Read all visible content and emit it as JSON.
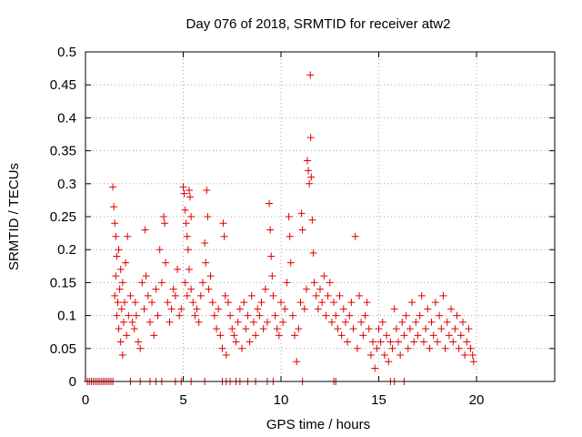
{
  "chart_data": {
    "type": "scatter",
    "title": "Day 076 of 2018, SRMTID for receiver atw2",
    "xlabel": "GPS time / hours",
    "ylabel": "SRMTID / TECUs",
    "xlim": [
      0,
      24
    ],
    "ylim": [
      0,
      0.5
    ],
    "xticks": [
      0,
      5,
      10,
      15,
      20
    ],
    "yticks": [
      0,
      0.05,
      0.1,
      0.15,
      0.2,
      0.25,
      0.3,
      0.35,
      0.4,
      0.45,
      0.5
    ],
    "xtick_labels": [
      "0",
      "5",
      "10",
      "15",
      "20"
    ],
    "ytick_labels": [
      "0",
      "0.05",
      "0.1",
      "0.15",
      "0.2",
      "0.25",
      "0.3",
      "0.35",
      "0.4",
      "0.45",
      "0.5"
    ],
    "grid": true,
    "marker": "+",
    "color": "#e00000",
    "series": [
      {
        "name": "SRMTID",
        "points": [
          [
            0.1,
            0
          ],
          [
            0.2,
            0
          ],
          [
            0.3,
            0
          ],
          [
            0.4,
            0
          ],
          [
            0.5,
            0
          ],
          [
            0.6,
            0
          ],
          [
            0.7,
            0
          ],
          [
            0.8,
            0
          ],
          [
            0.9,
            0
          ],
          [
            1.0,
            0
          ],
          [
            1.1,
            0
          ],
          [
            1.2,
            0
          ],
          [
            1.3,
            0
          ],
          [
            1.4,
            0
          ],
          [
            2.3,
            0
          ],
          [
            2.8,
            0
          ],
          [
            3.3,
            0
          ],
          [
            3.6,
            0
          ],
          [
            3.9,
            0
          ],
          [
            4.6,
            0
          ],
          [
            4.9,
            0
          ],
          [
            5.4,
            0
          ],
          [
            6.1,
            0
          ],
          [
            7.0,
            0
          ],
          [
            7.2,
            0
          ],
          [
            7.4,
            0
          ],
          [
            7.7,
            0
          ],
          [
            7.9,
            0
          ],
          [
            8.3,
            0
          ],
          [
            8.7,
            0
          ],
          [
            9.3,
            0
          ],
          [
            9.6,
            0
          ],
          [
            11.1,
            0
          ],
          [
            12.7,
            0
          ],
          [
            12.8,
            0
          ],
          [
            15.6,
            0
          ],
          [
            15.8,
            0
          ],
          [
            16.3,
            0
          ],
          [
            1.4,
            0.295
          ],
          [
            1.45,
            0.265
          ],
          [
            1.5,
            0.24
          ],
          [
            1.55,
            0.22
          ],
          [
            1.6,
            0.19
          ],
          [
            1.5,
            0.13
          ],
          [
            1.55,
            0.16
          ],
          [
            1.6,
            0.1
          ],
          [
            1.65,
            0.12
          ],
          [
            1.7,
            0.08
          ],
          [
            1.75,
            0.14
          ],
          [
            1.8,
            0.06
          ],
          [
            1.85,
            0.11
          ],
          [
            1.9,
            0.04
          ],
          [
            1.95,
            0.09
          ],
          [
            1.7,
            0.2
          ],
          [
            1.8,
            0.17
          ],
          [
            1.9,
            0.15
          ],
          [
            2.0,
            0.12
          ],
          [
            2.05,
            0.18
          ],
          [
            2.1,
            0.07
          ],
          [
            2.15,
            0.22
          ],
          [
            2.2,
            0.1
          ],
          [
            2.3,
            0.13
          ],
          [
            2.4,
            0.09
          ],
          [
            2.5,
            0.08
          ],
          [
            2.55,
            0.12
          ],
          [
            2.6,
            0.1
          ],
          [
            2.7,
            0.06
          ],
          [
            2.8,
            0.05
          ],
          [
            2.9,
            0.15
          ],
          [
            3.0,
            0.11
          ],
          [
            3.05,
            0.23
          ],
          [
            3.1,
            0.16
          ],
          [
            3.2,
            0.13
          ],
          [
            3.3,
            0.09
          ],
          [
            3.4,
            0.12
          ],
          [
            3.5,
            0.07
          ],
          [
            3.6,
            0.14
          ],
          [
            3.7,
            0.1
          ],
          [
            3.8,
            0.2
          ],
          [
            3.9,
            0.15
          ],
          [
            4.0,
            0.25
          ],
          [
            4.05,
            0.24
          ],
          [
            4.1,
            0.18
          ],
          [
            4.2,
            0.12
          ],
          [
            4.3,
            0.09
          ],
          [
            4.4,
            0.11
          ],
          [
            4.5,
            0.14
          ],
          [
            4.6,
            0.13
          ],
          [
            4.7,
            0.17
          ],
          [
            4.8,
            0.1
          ],
          [
            4.9,
            0.11
          ],
          [
            5.0,
            0.295
          ],
          [
            5.05,
            0.285
          ],
          [
            5.1,
            0.26
          ],
          [
            5.15,
            0.24
          ],
          [
            5.2,
            0.22
          ],
          [
            5.25,
            0.2
          ],
          [
            5.3,
            0.29
          ],
          [
            5.35,
            0.28
          ],
          [
            5.4,
            0.25
          ],
          [
            5.1,
            0.15
          ],
          [
            5.2,
            0.13
          ],
          [
            5.3,
            0.17
          ],
          [
            5.4,
            0.14
          ],
          [
            5.5,
            0.12
          ],
          [
            5.6,
            0.1
          ],
          [
            5.7,
            0.11
          ],
          [
            5.8,
            0.09
          ],
          [
            5.9,
            0.13
          ],
          [
            6.0,
            0.15
          ],
          [
            6.1,
            0.21
          ],
          [
            6.15,
            0.18
          ],
          [
            6.2,
            0.29
          ],
          [
            6.25,
            0.25
          ],
          [
            6.3,
            0.14
          ],
          [
            6.4,
            0.16
          ],
          [
            6.5,
            0.12
          ],
          [
            6.6,
            0.1
          ],
          [
            6.7,
            0.08
          ],
          [
            6.8,
            0.11
          ],
          [
            6.9,
            0.07
          ],
          [
            7.0,
            0.05
          ],
          [
            7.05,
            0.24
          ],
          [
            7.1,
            0.22
          ],
          [
            7.15,
            0.13
          ],
          [
            7.2,
            0.04
          ],
          [
            7.3,
            0.12
          ],
          [
            7.4,
            0.1
          ],
          [
            7.5,
            0.08
          ],
          [
            7.6,
            0.07
          ],
          [
            7.7,
            0.06
          ],
          [
            7.8,
            0.09
          ],
          [
            7.9,
            0.11
          ],
          [
            8.0,
            0.05
          ],
          [
            8.1,
            0.12
          ],
          [
            8.2,
            0.08
          ],
          [
            8.3,
            0.1
          ],
          [
            8.4,
            0.06
          ],
          [
            8.5,
            0.13
          ],
          [
            8.6,
            0.09
          ],
          [
            8.7,
            0.07
          ],
          [
            8.8,
            0.11
          ],
          [
            8.9,
            0.1
          ],
          [
            9.0,
            0.12
          ],
          [
            9.1,
            0.08
          ],
          [
            9.2,
            0.14
          ],
          [
            9.3,
            0.09
          ],
          [
            9.4,
            0.27
          ],
          [
            9.45,
            0.23
          ],
          [
            9.5,
            0.19
          ],
          [
            9.55,
            0.16
          ],
          [
            9.6,
            0.13
          ],
          [
            9.7,
            0.1
          ],
          [
            9.8,
            0.08
          ],
          [
            9.9,
            0.07
          ],
          [
            10.0,
            0.12
          ],
          [
            10.1,
            0.09
          ],
          [
            10.2,
            0.11
          ],
          [
            10.3,
            0.15
          ],
          [
            10.4,
            0.25
          ],
          [
            10.45,
            0.22
          ],
          [
            10.5,
            0.18
          ],
          [
            10.6,
            0.1
          ],
          [
            10.7,
            0.07
          ],
          [
            10.8,
            0.03
          ],
          [
            10.9,
            0.08
          ],
          [
            11.0,
            0.12
          ],
          [
            11.05,
            0.255
          ],
          [
            11.1,
            0.23
          ],
          [
            11.2,
            0.11
          ],
          [
            11.3,
            0.14
          ],
          [
            11.35,
            0.335
          ],
          [
            11.4,
            0.32
          ],
          [
            11.45,
            0.3
          ],
          [
            11.5,
            0.465
          ],
          [
            11.52,
            0.37
          ],
          [
            11.55,
            0.31
          ],
          [
            11.6,
            0.245
          ],
          [
            11.65,
            0.195
          ],
          [
            11.7,
            0.15
          ],
          [
            11.8,
            0.13
          ],
          [
            11.9,
            0.11
          ],
          [
            12.0,
            0.14
          ],
          [
            12.1,
            0.12
          ],
          [
            12.2,
            0.16
          ],
          [
            12.3,
            0.1
          ],
          [
            12.4,
            0.13
          ],
          [
            12.5,
            0.15
          ],
          [
            12.6,
            0.09
          ],
          [
            12.7,
            0.12
          ],
          [
            12.8,
            0.1
          ],
          [
            12.9,
            0.08
          ],
          [
            13.0,
            0.13
          ],
          [
            13.1,
            0.07
          ],
          [
            13.2,
            0.11
          ],
          [
            13.3,
            0.09
          ],
          [
            13.4,
            0.06
          ],
          [
            13.5,
            0.1
          ],
          [
            13.6,
            0.12
          ],
          [
            13.7,
            0.08
          ],
          [
            13.8,
            0.22
          ],
          [
            13.9,
            0.05
          ],
          [
            14.0,
            0.13
          ],
          [
            14.1,
            0.09
          ],
          [
            14.2,
            0.07
          ],
          [
            14.3,
            0.1
          ],
          [
            14.4,
            0.12
          ],
          [
            14.5,
            0.08
          ],
          [
            14.6,
            0.04
          ],
          [
            14.7,
            0.06
          ],
          [
            14.8,
            0.02
          ],
          [
            14.9,
            0.05
          ],
          [
            15.0,
            0.08
          ],
          [
            15.1,
            0.06
          ],
          [
            15.2,
            0.09
          ],
          [
            15.3,
            0.04
          ],
          [
            15.4,
            0.07
          ],
          [
            15.5,
            0.03
          ],
          [
            15.6,
            0.06
          ],
          [
            15.7,
            0.05
          ],
          [
            15.8,
            0.11
          ],
          [
            15.9,
            0.08
          ],
          [
            16.0,
            0.06
          ],
          [
            16.1,
            0.04
          ],
          [
            16.2,
            0.09
          ],
          [
            16.3,
            0.07
          ],
          [
            16.4,
            0.1
          ],
          [
            16.5,
            0.05
          ],
          [
            16.6,
            0.08
          ],
          [
            16.7,
            0.12
          ],
          [
            16.8,
            0.06
          ],
          [
            16.9,
            0.09
          ],
          [
            17.0,
            0.07
          ],
          [
            17.1,
            0.1
          ],
          [
            17.2,
            0.13
          ],
          [
            17.3,
            0.06
          ],
          [
            17.4,
            0.08
          ],
          [
            17.5,
            0.11
          ],
          [
            17.6,
            0.05
          ],
          [
            17.7,
            0.09
          ],
          [
            17.8,
            0.07
          ],
          [
            17.9,
            0.12
          ],
          [
            18.0,
            0.06
          ],
          [
            18.1,
            0.1
          ],
          [
            18.2,
            0.08
          ],
          [
            18.3,
            0.13
          ],
          [
            18.4,
            0.05
          ],
          [
            18.5,
            0.09
          ],
          [
            18.6,
            0.07
          ],
          [
            18.7,
            0.11
          ],
          [
            18.8,
            0.06
          ],
          [
            18.9,
            0.08
          ],
          [
            19.0,
            0.1
          ],
          [
            19.1,
            0.05
          ],
          [
            19.2,
            0.07
          ],
          [
            19.3,
            0.09
          ],
          [
            19.4,
            0.04
          ],
          [
            19.5,
            0.06
          ],
          [
            19.6,
            0.08
          ],
          [
            19.7,
            0.05
          ],
          [
            19.8,
            0.04
          ],
          [
            19.85,
            0.03
          ]
        ]
      }
    ]
  }
}
